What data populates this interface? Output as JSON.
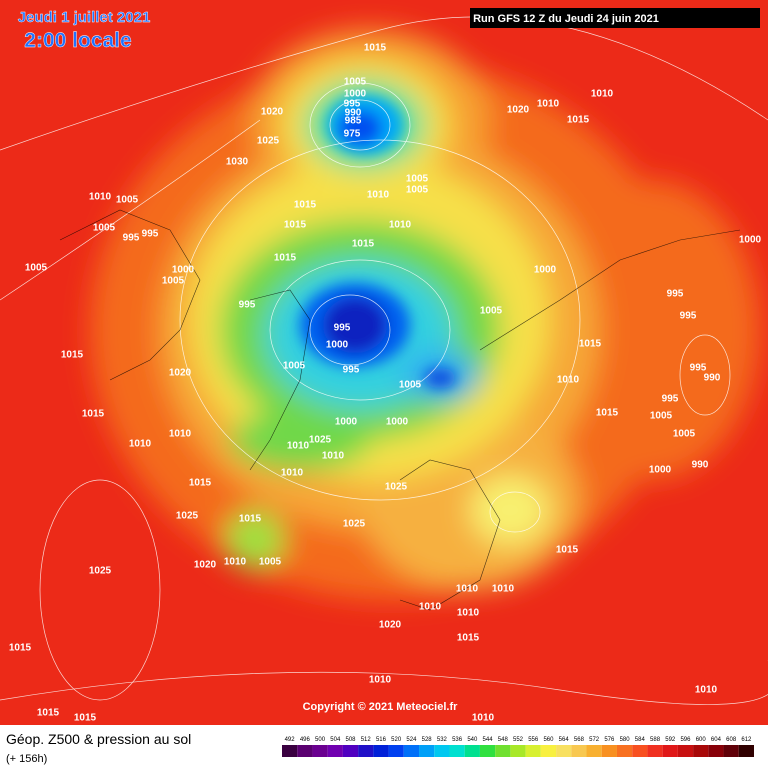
{
  "header": {
    "date": "Jeudi 1 juillet 2021",
    "time": "2:00 locale",
    "run": "Run GFS 12 Z du Jeudi 24 juin 2021"
  },
  "copyright": "Copyright © 2021 Meteociel.fr",
  "footer": {
    "title": "Géop. Z500 & pression au sol",
    "lead": "(+ 156h)"
  },
  "isobar_labels": [
    1015,
    1005,
    1000,
    995,
    990,
    985,
    975,
    1020,
    1025,
    1030,
    1020,
    1010,
    1015,
    1010,
    1010,
    1005,
    1005,
    995,
    995,
    1005,
    1000,
    1005,
    1015,
    1015,
    1010,
    1005,
    1005,
    1010,
    1015,
    1015,
    1000,
    995,
    995,
    1000,
    995,
    1005,
    1005,
    1005,
    1000,
    1000,
    1015,
    1020,
    1015,
    1010,
    1010,
    1015,
    1025,
    1015,
    1025,
    1025,
    1020,
    1010,
    1005,
    1025,
    1015,
    995,
    995,
    1000,
    1015,
    1010,
    1015,
    995,
    990,
    995,
    1005,
    1005,
    1000,
    990,
    1015,
    1010,
    1010,
    1010,
    1010,
    1020,
    1015,
    1010,
    1010,
    1010,
    1015,
    1015,
    1010,
    1025,
    1010,
    1010
  ],
  "scale": [
    {
      "value": 492,
      "color": "#3a0040"
    },
    {
      "value": 496,
      "color": "#5a0070"
    },
    {
      "value": 500,
      "color": "#6a0090"
    },
    {
      "value": 504,
      "color": "#7000b0"
    },
    {
      "value": 508,
      "color": "#5000c0"
    },
    {
      "value": 512,
      "color": "#2010c8"
    },
    {
      "value": 516,
      "color": "#0020d8"
    },
    {
      "value": 520,
      "color": "#0040f0"
    },
    {
      "value": 524,
      "color": "#0070f8"
    },
    {
      "value": 528,
      "color": "#00a0f8"
    },
    {
      "value": 532,
      "color": "#00c8f0"
    },
    {
      "value": 536,
      "color": "#00e0d0"
    },
    {
      "value": 540,
      "color": "#00e090"
    },
    {
      "value": 544,
      "color": "#30e040"
    },
    {
      "value": 548,
      "color": "#70e030"
    },
    {
      "value": 552,
      "color": "#a8e828"
    },
    {
      "value": 556,
      "color": "#d8f030"
    },
    {
      "value": 560,
      "color": "#f8f040"
    },
    {
      "value": 564,
      "color": "#f8e060"
    },
    {
      "value": 568,
      "color": "#f8c850"
    },
    {
      "value": 572,
      "color": "#f8b030"
    },
    {
      "value": 576,
      "color": "#f89020"
    },
    {
      "value": 580,
      "color": "#f87020"
    },
    {
      "value": 584,
      "color": "#f85020"
    },
    {
      "value": 588,
      "color": "#f03020"
    },
    {
      "value": 592,
      "color": "#e01818"
    },
    {
      "value": 596,
      "color": "#c81010"
    },
    {
      "value": 600,
      "color": "#a80808"
    },
    {
      "value": 604,
      "color": "#880008"
    },
    {
      "value": 608,
      "color": "#600008"
    },
    {
      "value": 612,
      "color": "#300000"
    }
  ]
}
